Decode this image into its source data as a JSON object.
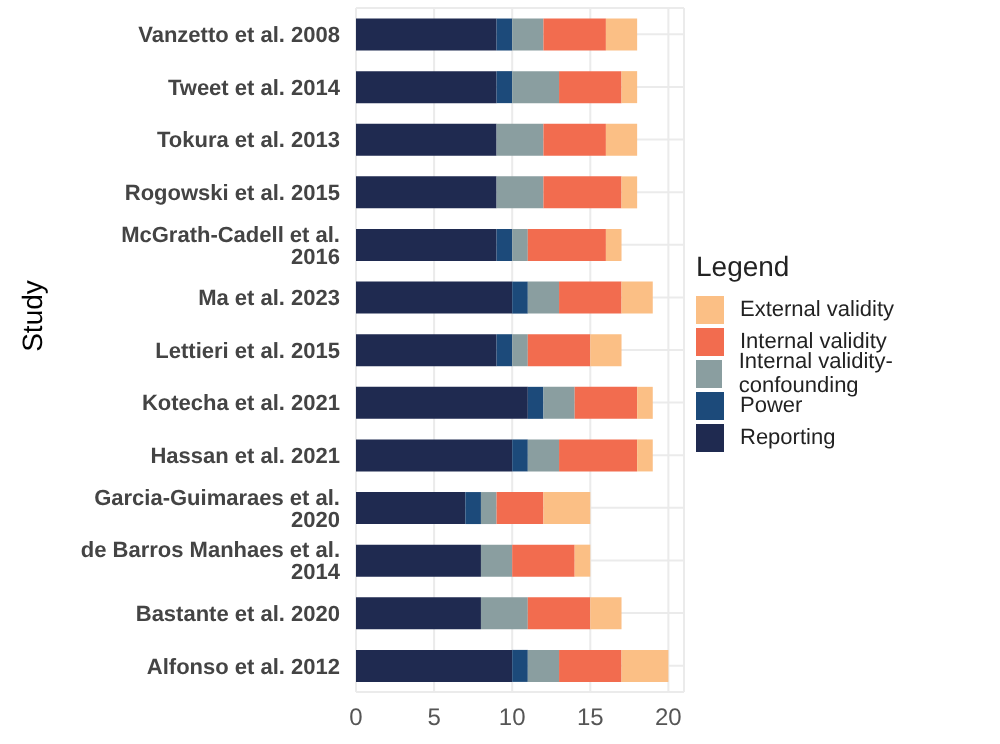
{
  "chart_data": {
    "type": "bar",
    "orientation": "horizontal",
    "stacked": true,
    "ylabel": "Study",
    "legend_title": "Legend",
    "legend": "right",
    "grid": true,
    "categories": [
      "Vanzetto et al. 2008",
      "Tweet et al. 2014",
      "Tokura et al. 2013",
      "Rogowski et al. 2015",
      "McGrath-Cadell et al. 2016",
      "Ma et al. 2023",
      "Lettieri et al. 2015",
      "Kotecha et al. 2021",
      "Hassan et al. 2021",
      "Garcia-Guimaraes et al. 2020",
      "de Barros Manhaes et al. 2014",
      "Bastante et al. 2020",
      "Alfonso et al. 2012"
    ],
    "xlim": [
      0,
      21
    ],
    "xticks": [
      0,
      5,
      10,
      15,
      20
    ],
    "series": [
      {
        "name": "Reporting",
        "color": "#1f2a50",
        "values": [
          9,
          9,
          9,
          9,
          9,
          10,
          9,
          11,
          10,
          7,
          8,
          8,
          10
        ]
      },
      {
        "name": "Power",
        "color": "#1c4a7a",
        "values": [
          1,
          1,
          0,
          0,
          1,
          1,
          1,
          1,
          1,
          1,
          0,
          0,
          1
        ]
      },
      {
        "name": "Internal validity-confounding",
        "color": "#8a9ea0",
        "values": [
          2,
          3,
          3,
          3,
          1,
          2,
          1,
          2,
          2,
          1,
          2,
          3,
          2
        ]
      },
      {
        "name": "Internal validity",
        "color": "#f26c4f",
        "values": [
          4,
          4,
          4,
          5,
          5,
          4,
          4,
          4,
          5,
          3,
          4,
          4,
          4
        ]
      },
      {
        "name": "External validity",
        "color": "#fbbf85",
        "values": [
          2,
          1,
          2,
          1,
          1,
          2,
          2,
          1,
          1,
          3,
          1,
          2,
          3
        ]
      }
    ]
  }
}
